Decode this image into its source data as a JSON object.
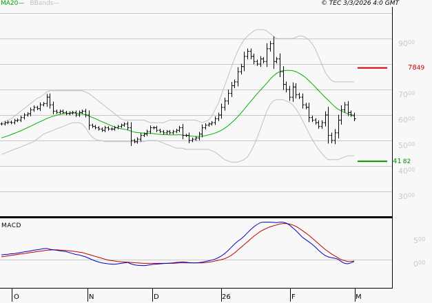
{
  "header": {
    "legend_ma": "MA20",
    "legend_ma_swatch": "—",
    "legend_bb": "BBands",
    "legend_bb_swatch": "—",
    "copyright": "© TEC 3/3/2026 4:0 GMT"
  },
  "price_axis": {
    "labels": [
      {
        "main": "90",
        "sup": "00",
        "value": 9000
      },
      {
        "main": "70",
        "sup": "00",
        "value": 7000
      },
      {
        "main": "60",
        "sup": "00",
        "value": 6000
      },
      {
        "main": "50",
        "sup": "00",
        "value": 5000
      },
      {
        "main": "40",
        "sup": "00",
        "value": 4000
      },
      {
        "main": "30",
        "sup": "00",
        "value": 3000
      }
    ]
  },
  "reference_lines": {
    "resistance": {
      "main": "78",
      "sup": "49",
      "value": 7849,
      "color": "#cc0000"
    },
    "support": {
      "main": "41",
      "sup": "82",
      "value": 4182,
      "color": "#009000"
    }
  },
  "macd": {
    "title": "MACD",
    "axis_labels": [
      {
        "main": "5",
        "sup": "00",
        "value": 500
      },
      {
        "main": "0",
        "sup": "00",
        "value": 0
      }
    ],
    "colors": {
      "macd": "#0000c0",
      "signal": "#c00000"
    }
  },
  "x_axis": {
    "labels": [
      "O",
      "N",
      "D",
      "26",
      "F",
      "M"
    ]
  },
  "colors": {
    "background": "#f8f8f8",
    "grid": "#c8c8c8",
    "ma20": "#00b000",
    "bbands": "#c0c0c0",
    "bars": "#000000"
  },
  "chart_data": {
    "type": "line",
    "title": "Price (OHLC bars) with MA20, Bollinger Bands and MACD",
    "xlabel": "",
    "ylabel": "",
    "x_tick_labels": [
      "O",
      "N",
      "D",
      "26",
      "F",
      "M"
    ],
    "ylim": [
      2700,
      9700
    ],
    "y_ticks": [
      3000,
      4000,
      5000,
      6000,
      7000,
      8000,
      9000
    ],
    "grid": true,
    "legend": [
      "MA20",
      "BBands"
    ],
    "legend_position": "top-left",
    "reference_lines": [
      {
        "label": "7849",
        "value": 7849,
        "color": "red"
      },
      {
        "label": "4182",
        "value": 4182,
        "color": "green"
      }
    ],
    "series": [
      {
        "name": "Close",
        "values": [
          5650,
          5700,
          5720,
          5700,
          5780,
          5800,
          5900,
          6000,
          6050,
          6200,
          6300,
          6250,
          6400,
          6450,
          6700,
          6400,
          6150,
          6100,
          6150,
          6100,
          6050,
          6080,
          6100,
          6000,
          6100,
          6150,
          6000,
          5600,
          5550,
          5500,
          5450,
          5400,
          5500,
          5450,
          5450,
          5500,
          5550,
          5600,
          5650,
          5500,
          5000,
          4950,
          5050,
          5200,
          5250,
          5350,
          5500,
          5500,
          5400,
          5350,
          5300,
          5350,
          5300,
          5350,
          5400,
          5500,
          5200,
          5200,
          5000,
          5050,
          5100,
          5250,
          5500,
          5600,
          5650,
          5700,
          5850,
          6000,
          6300,
          6550,
          6850,
          7150,
          7300,
          7700,
          7900,
          8300,
          8500,
          8300,
          8100,
          8000,
          8200,
          8100,
          8600,
          8800,
          8100,
          8200,
          7700,
          7200,
          7000,
          6700,
          7100,
          6800,
          6700,
          6400,
          6300,
          5900,
          5800,
          5700,
          5550,
          5700,
          6000,
          5200,
          5000,
          5300,
          5800,
          6200,
          6400,
          6100,
          6000,
          5850
        ]
      },
      {
        "name": "MA20",
        "values": [
          5100,
          5140,
          5180,
          5230,
          5280,
          5330,
          5380,
          5440,
          5500,
          5560,
          5620,
          5680,
          5740,
          5800,
          5860,
          5910,
          5950,
          5990,
          6020,
          6050,
          6060,
          6070,
          6080,
          6070,
          6060,
          6040,
          6010,
          5960,
          5910,
          5860,
          5800,
          5740,
          5690,
          5630,
          5580,
          5530,
          5490,
          5460,
          5440,
          5410,
          5370,
          5330,
          5310,
          5300,
          5290,
          5280,
          5280,
          5270,
          5250,
          5240,
          5230,
          5230,
          5220,
          5220,
          5220,
          5230,
          5210,
          5200,
          5180,
          5170,
          5160,
          5160,
          5170,
          5190,
          5220,
          5250,
          5290,
          5340,
          5400,
          5480,
          5570,
          5680,
          5800,
          5930,
          6070,
          6220,
          6380,
          6530,
          6680,
          6830,
          6970,
          7110,
          7250,
          7400,
          7530,
          7630,
          7700,
          7740,
          7750,
          7750,
          7740,
          7700,
          7640,
          7560,
          7470,
          7350,
          7230,
          7100,
          6960,
          6830,
          6700,
          6580,
          6450,
          6330,
          6230,
          6160,
          6100,
          6050,
          6000,
          5950
        ]
      },
      {
        "name": "BBand Upper",
        "values": [
          5700,
          5750,
          5800,
          5850,
          5950,
          6050,
          6150,
          6250,
          6350,
          6450,
          6550,
          6650,
          6700,
          6800,
          6900,
          6950,
          6950,
          6950,
          6950,
          6950,
          6950,
          6950,
          6950,
          6950,
          6950,
          6950,
          6900,
          6850,
          6750,
          6650,
          6550,
          6450,
          6350,
          6250,
          6150,
          6050,
          5950,
          5850,
          5800,
          5800,
          5800,
          5800,
          5800,
          5800,
          5800,
          5750,
          5700,
          5700,
          5700,
          5700,
          5700,
          5750,
          5800,
          5800,
          5800,
          5800,
          5800,
          5800,
          5800,
          5800,
          5800,
          5750,
          5700,
          5750,
          5800,
          5950,
          6200,
          6450,
          6800,
          7150,
          7500,
          7850,
          8200,
          8500,
          8750,
          8950,
          9100,
          9200,
          9300,
          9350,
          9350,
          9350,
          9300,
          9200,
          9100,
          9000,
          9000,
          9000,
          9000,
          9000,
          9000,
          9050,
          9100,
          9100,
          9050,
          8950,
          8800,
          8600,
          8300,
          8000,
          7700,
          7500,
          7350,
          7300,
          7300,
          7300,
          7300,
          7300,
          7300,
          7300
        ]
      },
      {
        "name": "BBand Lower",
        "values": [
          4450,
          4500,
          4550,
          4600,
          4650,
          4700,
          4750,
          4800,
          4850,
          4900,
          4950,
          5050,
          5150,
          5250,
          5300,
          5350,
          5400,
          5450,
          5500,
          5550,
          5600,
          5650,
          5700,
          5700,
          5700,
          5650,
          5500,
          5300,
          5150,
          5050,
          5000,
          5000,
          4950,
          4950,
          4950,
          4950,
          4950,
          4950,
          4950,
          4950,
          4950,
          4950,
          4950,
          4950,
          4950,
          5000,
          5000,
          5000,
          5000,
          4950,
          4900,
          4850,
          4800,
          4750,
          4700,
          4700,
          4700,
          4650,
          4650,
          4650,
          4650,
          4650,
          4650,
          4650,
          4650,
          4600,
          4550,
          4450,
          4350,
          4250,
          4200,
          4150,
          4150,
          4150,
          4200,
          4250,
          4350,
          4550,
          4800,
          5100,
          5450,
          5800,
          6150,
          6400,
          6550,
          6600,
          6600,
          6600,
          6550,
          6500,
          6400,
          6250,
          6050,
          5800,
          5550,
          5300,
          5050,
          4850,
          4650,
          4500,
          4350,
          4250,
          4250,
          4250,
          4250,
          4300,
          4350,
          4400,
          4400,
          4400
        ]
      },
      {
        "name": "MACD",
        "values": [
          100,
          110,
          115,
          125,
          130,
          140,
          150,
          165,
          175,
          185,
          200,
          210,
          220,
          235,
          240,
          220,
          210,
          200,
          190,
          180,
          170,
          150,
          130,
          110,
          100,
          80,
          60,
          30,
          0,
          -30,
          -50,
          -70,
          -80,
          -90,
          -95,
          -100,
          -90,
          -80,
          -70,
          -60,
          -90,
          -110,
          -120,
          -125,
          -130,
          -120,
          -110,
          -100,
          -95,
          -90,
          -85,
          -80,
          -75,
          -70,
          -60,
          -55,
          -50,
          -55,
          -65,
          -70,
          -70,
          -65,
          -55,
          -40,
          -25,
          -10,
          10,
          40,
          80,
          130,
          190,
          260,
          330,
          390,
          440,
          500,
          570,
          640,
          700,
          750,
          790,
          800,
          800,
          800,
          795,
          790,
          800,
          800,
          780,
          740,
          680,
          620,
          550,
          480,
          430,
          380,
          330,
          270,
          200,
          140,
          90,
          60,
          40,
          30,
          10,
          -40,
          -80,
          -90,
          -70,
          -40
        ]
      },
      {
        "name": "Signal",
        "values": [
          60,
          70,
          80,
          90,
          100,
          110,
          120,
          130,
          140,
          150,
          160,
          170,
          180,
          190,
          200,
          205,
          210,
          210,
          205,
          200,
          195,
          190,
          180,
          170,
          160,
          150,
          130,
          110,
          90,
          70,
          50,
          30,
          10,
          -10,
          -20,
          -30,
          -40,
          -45,
          -50,
          -55,
          -60,
          -65,
          -70,
          -75,
          -80,
          -80,
          -80,
          -80,
          -80,
          -80,
          -80,
          -80,
          -80,
          -80,
          -75,
          -70,
          -70,
          -70,
          -70,
          -70,
          -70,
          -70,
          -70,
          -65,
          -55,
          -45,
          -30,
          -15,
          0,
          20,
          50,
          90,
          140,
          200,
          260,
          320,
          380,
          440,
          500,
          550,
          600,
          640,
          670,
          700,
          720,
          740,
          760,
          770,
          770,
          760,
          740,
          710,
          670,
          620,
          570,
          520,
          460,
          400,
          340,
          280,
          220,
          170,
          120,
          80,
          40,
          0,
          -20,
          -40,
          -40,
          -30
        ]
      }
    ]
  }
}
